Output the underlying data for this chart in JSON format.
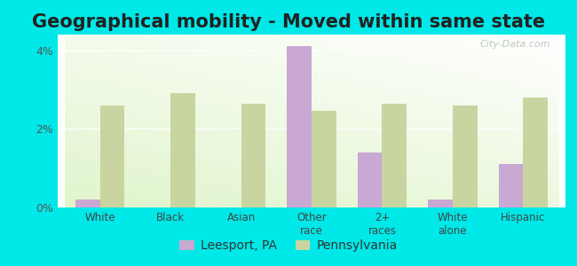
{
  "title": "Geographical mobility - Moved within same state",
  "categories": [
    "White",
    "Black",
    "Asian",
    "Other\nrace",
    "2+\nraces",
    "White\nalone",
    "Hispanic"
  ],
  "leesport_values": [
    0.2,
    0.0,
    0.0,
    4.1,
    1.4,
    0.2,
    1.1
  ],
  "pennsylvania_values": [
    2.6,
    2.9,
    2.65,
    2.45,
    2.65,
    2.6,
    2.8
  ],
  "leesport_color": "#c9a8d4",
  "pennsylvania_color": "#c8d5a0",
  "background_color": "#00e8e8",
  "title_fontsize": 15,
  "ylim": [
    0,
    4.4
  ],
  "ytick_labels": [
    "0%",
    "2%",
    "4%"
  ],
  "bar_width": 0.35,
  "legend_labels": [
    "Leesport, PA",
    "Pennsylvania"
  ],
  "watermark": "City-Data.com"
}
